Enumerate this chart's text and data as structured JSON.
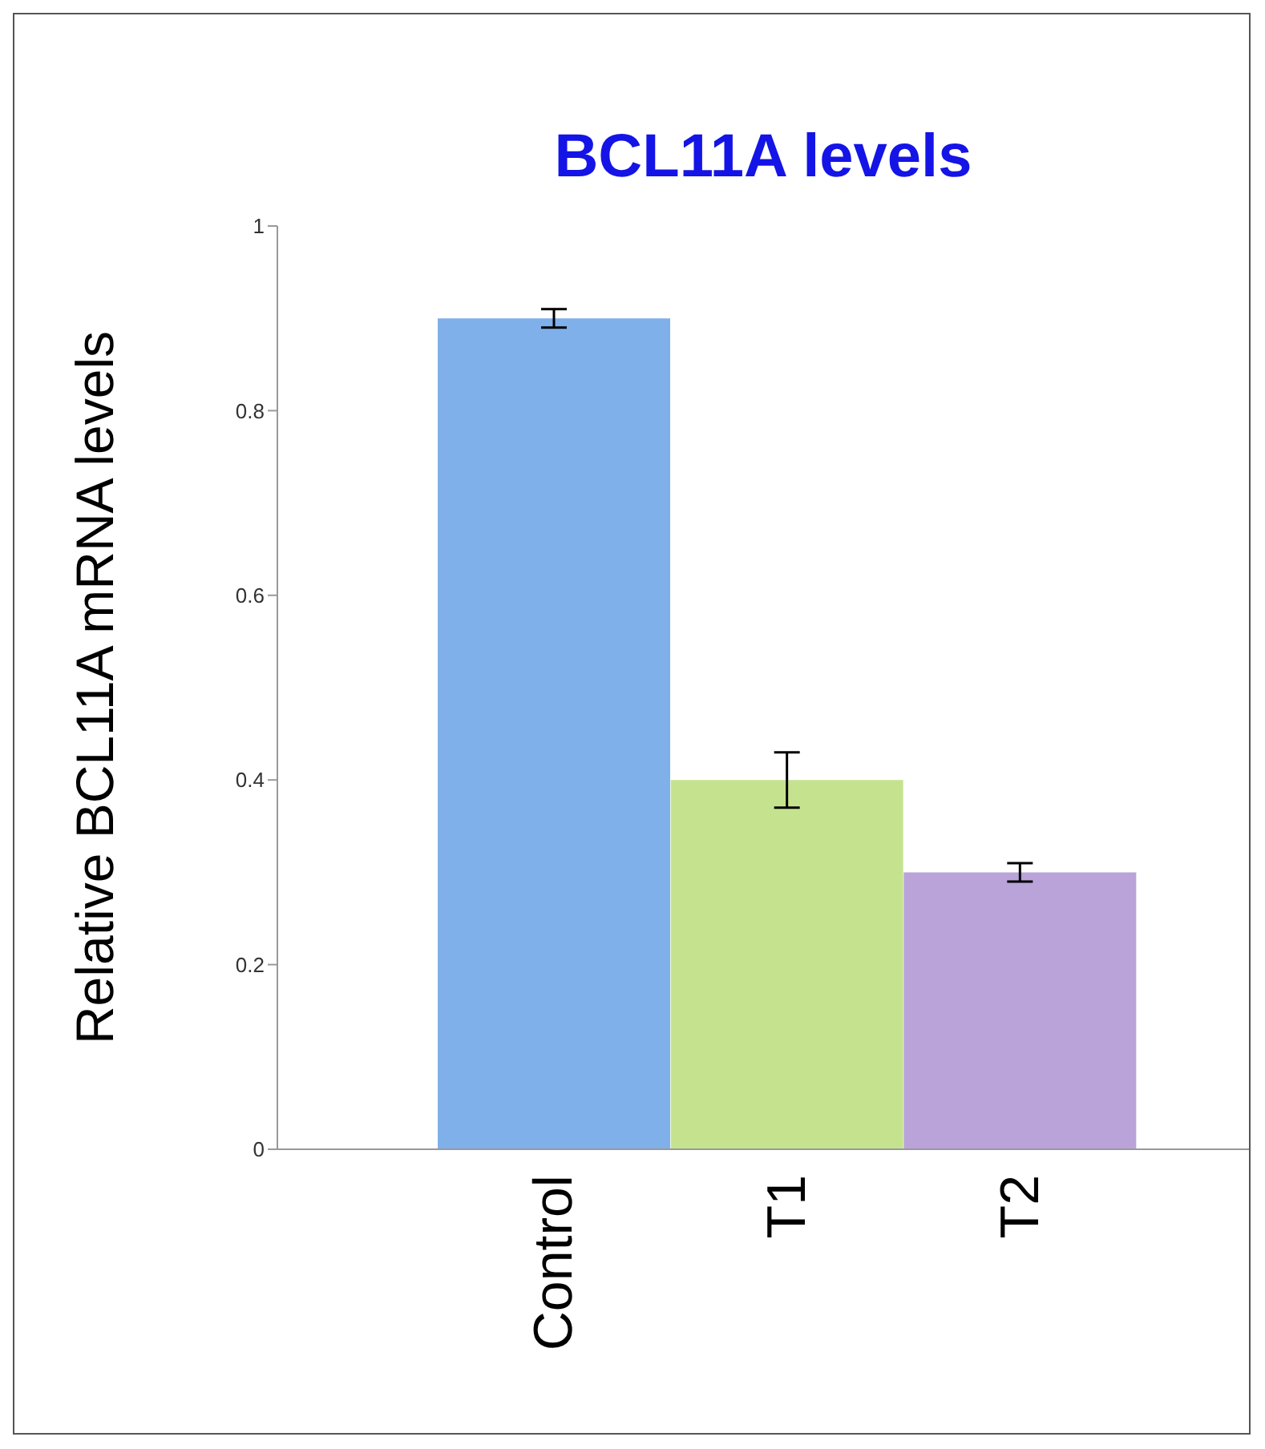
{
  "chart_data": {
    "type": "bar",
    "title": "BCL11A levels",
    "ylabel": "Relative BCL11A mRNA levels",
    "categories": [
      "Control",
      "T1",
      "T2"
    ],
    "values": [
      0.9,
      0.4,
      0.3
    ],
    "errors": [
      0.01,
      0.03,
      0.01
    ],
    "colors": [
      "#7fb0ea",
      "#c5e38f",
      "#b9a3d9"
    ],
    "ylim": [
      0,
      1
    ],
    "yticks": [
      0,
      0.2,
      0.4,
      0.6,
      0.8,
      1
    ],
    "grid": false,
    "legend": false
  }
}
